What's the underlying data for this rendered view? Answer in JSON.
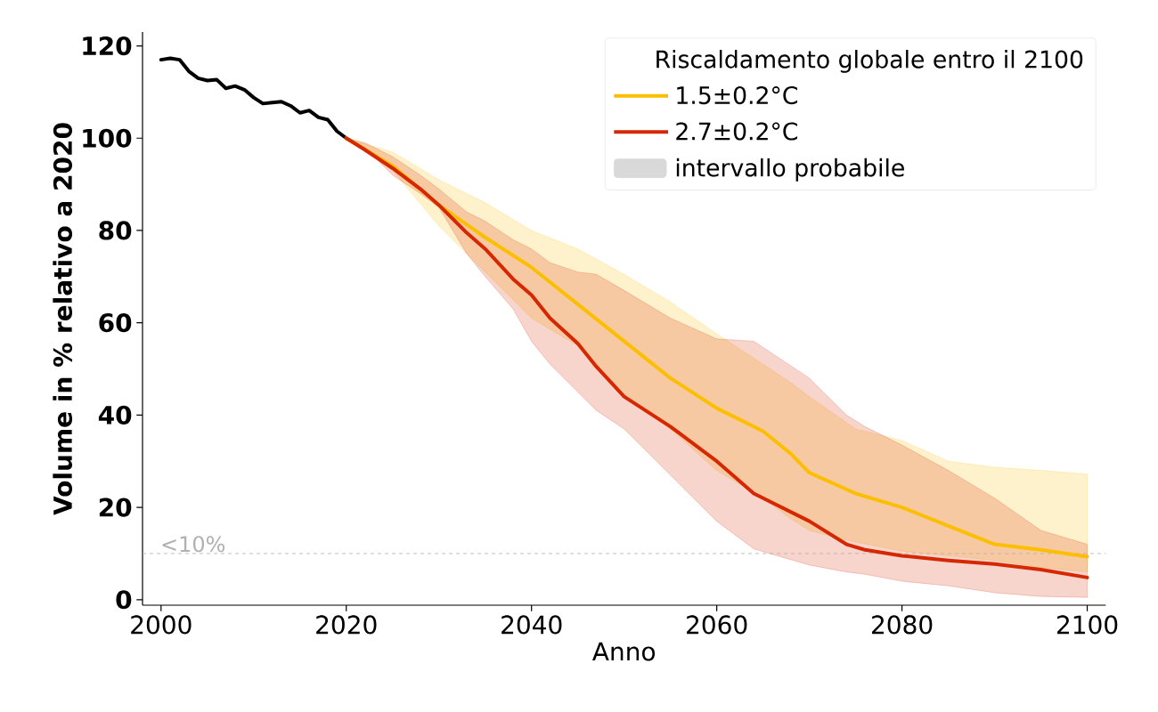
{
  "chart_data": {
    "type": "line",
    "xlabel": "Anno",
    "ylabel": "Volume in % relativo a 2020",
    "legend_title": "Riscaldamento globale entro il 2100",
    "legend": "top right",
    "grid": false,
    "marker": "none",
    "line_style": "solid",
    "xlim": [
      1998,
      2102
    ],
    "ylim": [
      -1.2,
      123
    ],
    "xticks": [
      2000,
      2020,
      2040,
      2060,
      2080,
      2100
    ],
    "yticks": [
      0,
      20,
      40,
      60,
      80,
      100,
      120
    ],
    "series": [
      {
        "color": "#000000",
        "x": [
          2000,
          2001,
          2002,
          2003,
          2004,
          2005,
          2006,
          2007,
          2008,
          2009,
          2010,
          2011,
          2012,
          2013,
          2014,
          2015,
          2016,
          2017,
          2018,
          2019,
          2020
        ],
        "values": [
          117,
          117.3,
          117,
          114.5,
          113,
          112.5,
          112.7,
          110.8,
          111.3,
          110.5,
          108.8,
          107.5,
          107.7,
          107.9,
          107,
          105.5,
          106,
          104.5,
          104,
          101.5,
          100
        ]
      },
      {
        "name": "1.5±0.2°C",
        "color": "#fcbf00",
        "x": [
          2020,
          2025,
          2030,
          2035,
          2040,
          2045,
          2050,
          2055,
          2060,
          2065,
          2068,
          2070,
          2075,
          2080,
          2085,
          2090,
          2095,
          2100
        ],
        "values": [
          100,
          94,
          85.5,
          78.5,
          72,
          64,
          56,
          48,
          41.5,
          36.5,
          31.6,
          27.5,
          23,
          20,
          16,
          12,
          10.8,
          9.3
        ],
        "upper": [
          100,
          97,
          91,
          86,
          80,
          76,
          70.5,
          64.5,
          57.6,
          51,
          47,
          44,
          37,
          34.5,
          30,
          28.7,
          28,
          27.2
        ],
        "lower": [
          100,
          93,
          81,
          71,
          61,
          55,
          44,
          37,
          28,
          22,
          17.5,
          15,
          12.5,
          10.5,
          9.5,
          8.5,
          7,
          6
        ]
      },
      {
        "name": "2.7±0.2°C",
        "color": "#d62800",
        "x": [
          2020,
          2022,
          2025,
          2028,
          2030,
          2033,
          2035,
          2038,
          2040,
          2042,
          2045,
          2047,
          2050,
          2055,
          2060,
          2064,
          2070,
          2074,
          2076,
          2080,
          2085,
          2090,
          2095,
          2100
        ],
        "values": [
          100,
          97.5,
          93.5,
          89,
          85.5,
          79.5,
          76,
          69.5,
          66,
          61,
          55.5,
          50.5,
          44,
          37.5,
          30,
          23,
          17,
          12,
          10.8,
          9.5,
          8.5,
          7.7,
          6.5,
          4.8
        ],
        "upper": [
          100,
          99,
          96,
          92,
          89,
          84,
          82,
          78,
          76,
          73,
          71,
          70.5,
          67,
          61,
          56.5,
          56,
          48,
          40,
          37.5,
          33.5,
          28,
          22,
          15,
          12
        ],
        "lower": [
          100,
          98,
          92,
          88,
          85,
          75,
          70,
          63,
          56,
          51,
          45,
          41,
          37,
          27,
          17,
          11,
          7.5,
          6,
          5.5,
          4,
          3,
          1.5,
          0.7,
          0.5
        ]
      },
      {
        "type": "area",
        "name": "intervallo probabile",
        "color": "#d9d9d9"
      }
    ],
    "ref_lines": [
      {
        "axis": "y",
        "value": 10,
        "label": "<10%",
        "color": "#b0b0b0",
        "line_style": "dashed"
      }
    ]
  }
}
